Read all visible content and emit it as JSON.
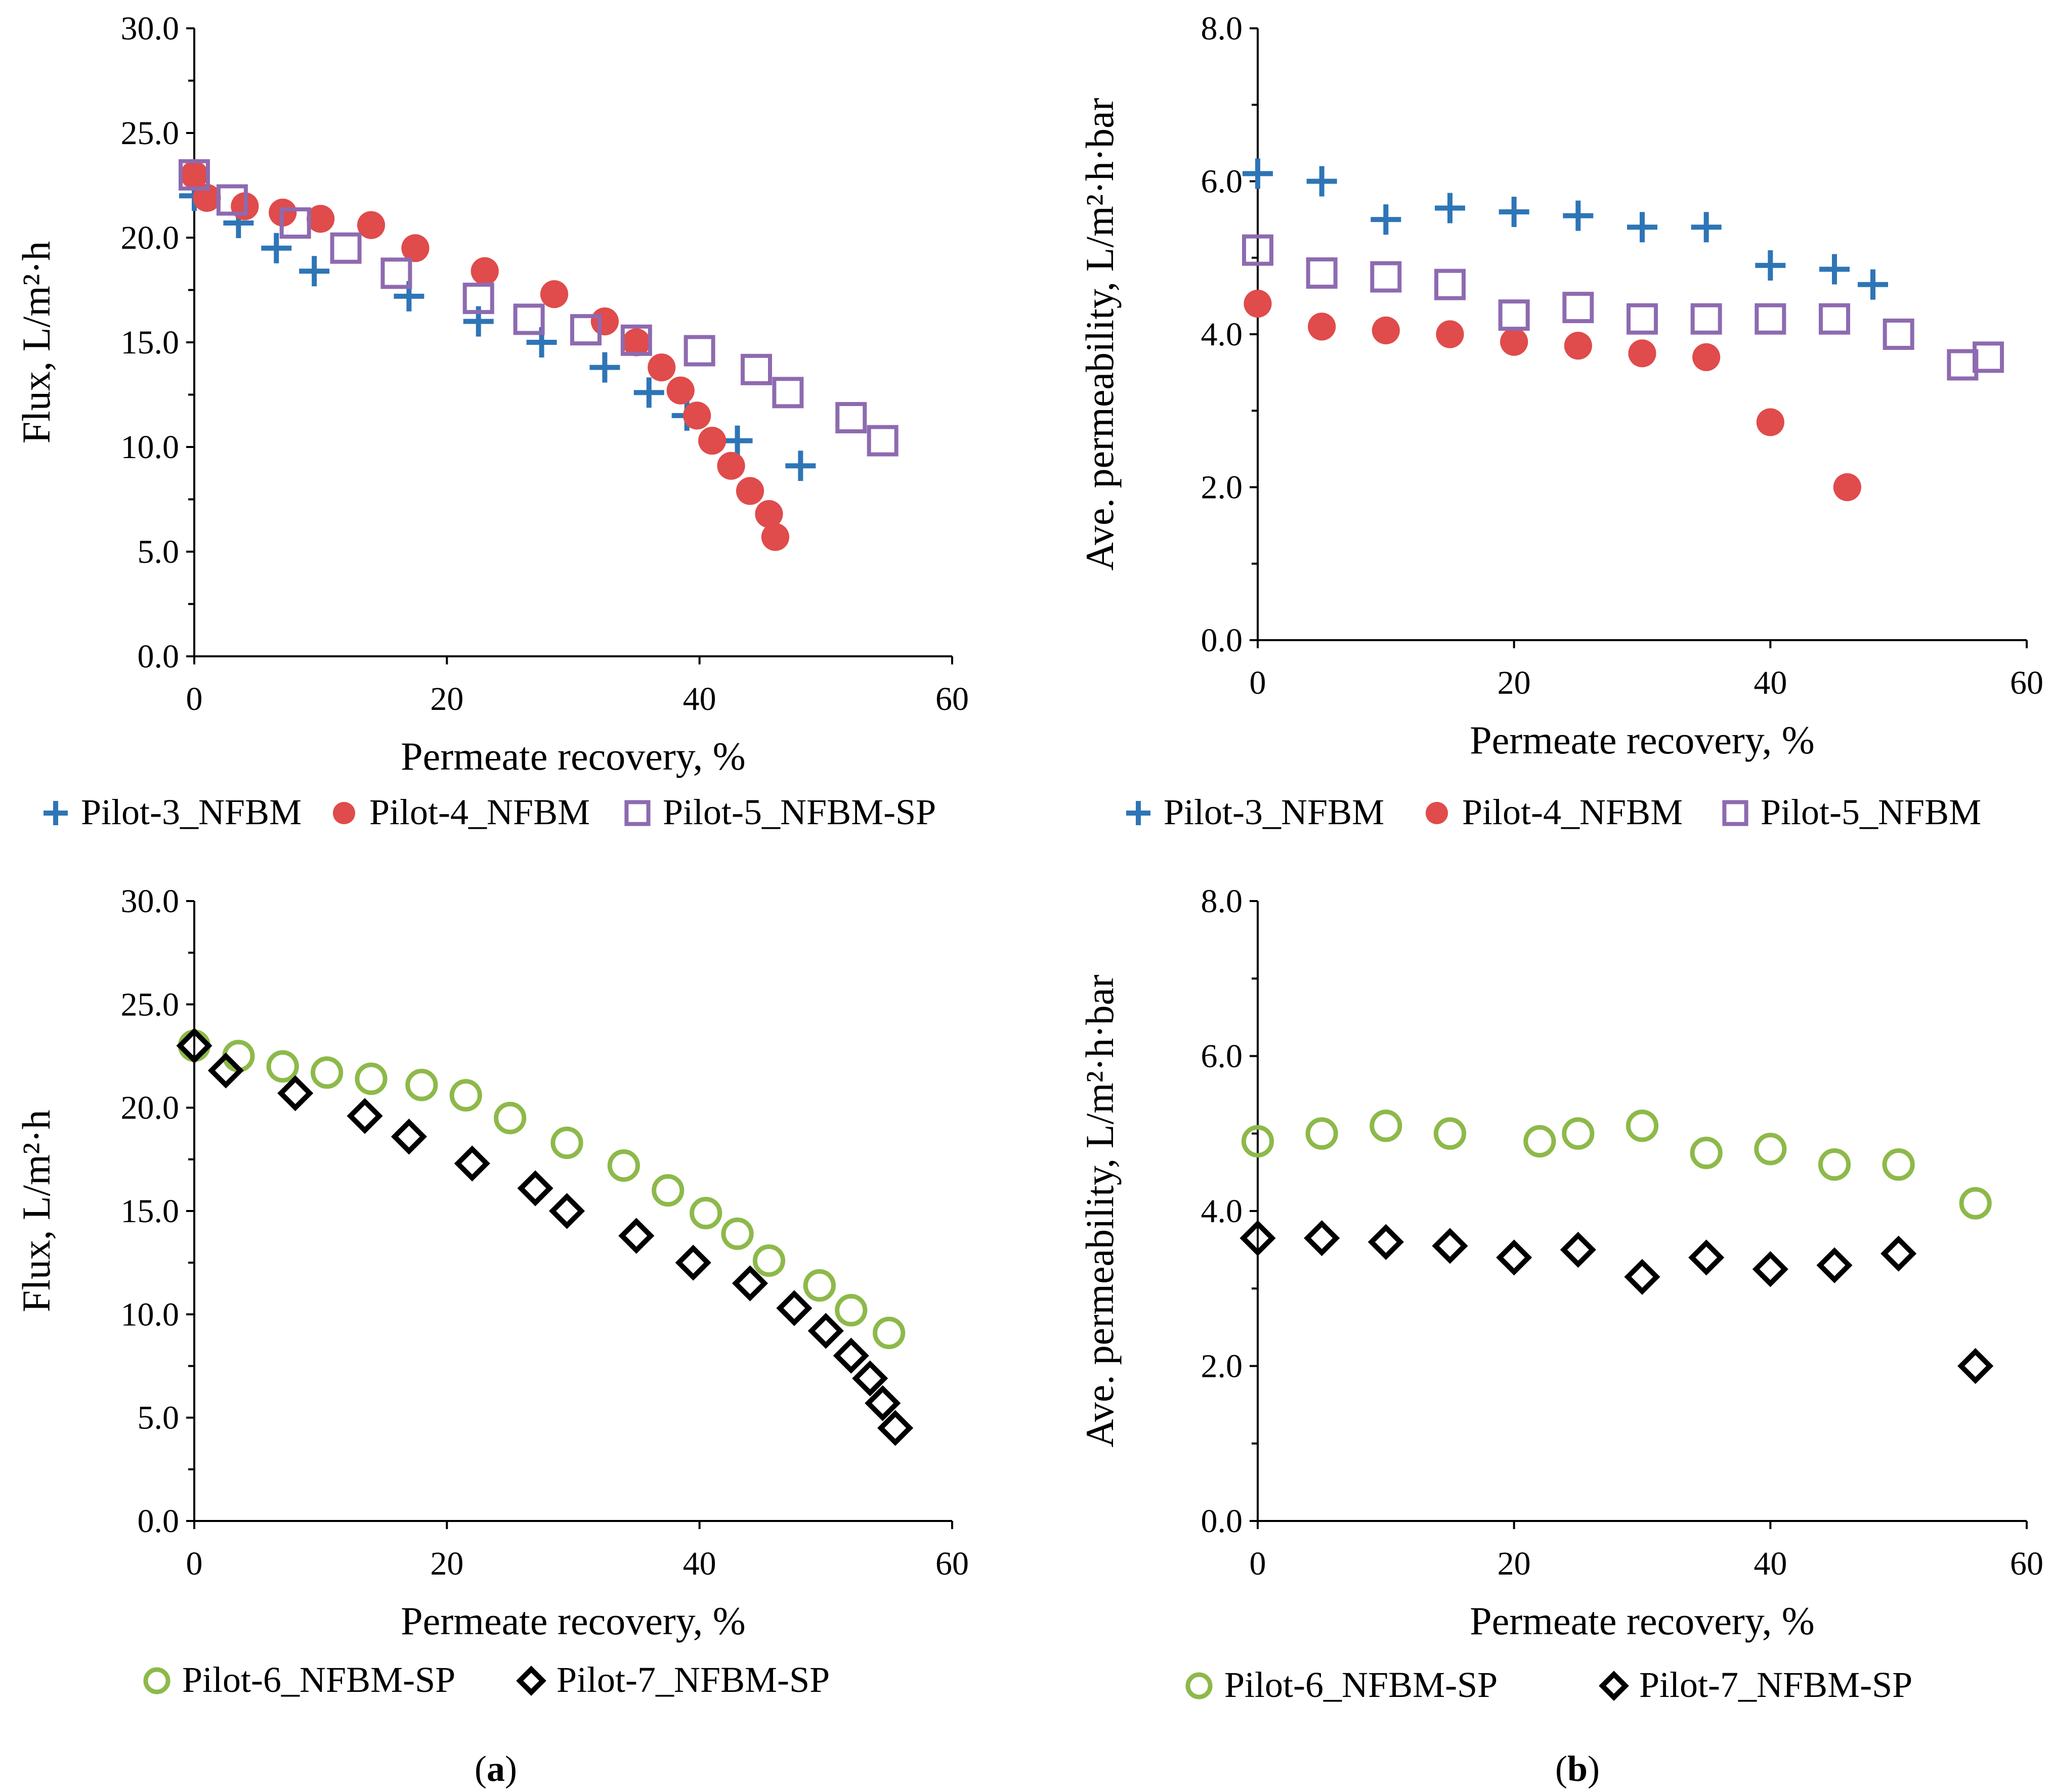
{
  "figure": {
    "caption_a_open": "(",
    "caption_a_letter": "a",
    "caption_a_close": ")",
    "caption_b_open": "(",
    "caption_b_letter": "b",
    "caption_b_close": ")"
  },
  "colors": {
    "blue": "#2E75B6",
    "red": "#E04B4B",
    "purple": "#8E6AB0",
    "green": "#8DB94A",
    "black": "#000000"
  },
  "chart_data": [
    {
      "id": "top-left",
      "type": "scatter",
      "title": "",
      "xlabel": "Permeate recovery, %",
      "ylabel": "Flux, L/m²·h",
      "xlim": [
        0,
        60
      ],
      "ylim": [
        0,
        30
      ],
      "xticks": [
        "0",
        "20",
        "40",
        "60"
      ],
      "yticks": [
        "0.0",
        "5.0",
        "10.0",
        "15.0",
        "20.0",
        "25.0",
        "30.0"
      ],
      "series": [
        {
          "name": "Pilot-3_NFBM",
          "marker": "plus",
          "color": "blue",
          "x": [
            0,
            3.5,
            6.5,
            9.5,
            17,
            22.5,
            27.5,
            32.5,
            36,
            39,
            43,
            48
          ],
          "y": [
            22,
            20.7,
            19.5,
            18.4,
            17.2,
            16.0,
            15.0,
            13.8,
            12.6,
            11.5,
            10.3,
            9.1
          ]
        },
        {
          "name": "Pilot-4_NFBM",
          "marker": "circle-filled",
          "color": "red",
          "x": [
            0,
            1,
            4,
            7,
            10,
            14,
            17.5,
            23,
            28.5,
            32.5,
            35,
            37,
            38.5,
            39.8,
            41,
            42.5,
            44,
            45.5,
            46
          ],
          "y": [
            23,
            21.9,
            21.5,
            21.2,
            20.9,
            20.6,
            19.5,
            18.4,
            17.3,
            16.0,
            15.0,
            13.8,
            12.7,
            11.5,
            10.3,
            9.1,
            7.9,
            6.8,
            5.7
          ]
        },
        {
          "name": "Pilot-5_NFBM-SP",
          "marker": "square-open",
          "color": "purple",
          "x": [
            0,
            3,
            8,
            12,
            16,
            22.5,
            26.5,
            31,
            35,
            40,
            44.5,
            47,
            52,
            54.5
          ],
          "y": [
            23.0,
            21.8,
            20.7,
            19.5,
            18.3,
            17.1,
            16.1,
            15.6,
            15.1,
            14.6,
            13.7,
            12.6,
            11.4,
            10.3
          ]
        }
      ],
      "legend": "bottom"
    },
    {
      "id": "top-right",
      "type": "scatter",
      "title": "",
      "xlabel": "Permeate recovery, %",
      "ylabel": "Ave. permeability, L/m²·h·bar",
      "xlim": [
        0,
        60
      ],
      "ylim": [
        0,
        8
      ],
      "xticks": [
        "0",
        "20",
        "40",
        "60"
      ],
      "yticks": [
        "0.0",
        "2.0",
        "4.0",
        "6.0",
        "8.0"
      ],
      "series": [
        {
          "name": "Pilot-3_NFBM",
          "marker": "plus",
          "color": "blue",
          "x": [
            0,
            5,
            10,
            15,
            20,
            25,
            30,
            35,
            40,
            45,
            48
          ],
          "y": [
            6.1,
            6.0,
            5.5,
            5.65,
            5.6,
            5.55,
            5.4,
            5.4,
            4.9,
            4.85,
            4.65
          ]
        },
        {
          "name": "Pilot-4_NFBM",
          "marker": "circle-filled",
          "color": "red",
          "x": [
            0,
            5,
            10,
            15,
            20,
            25,
            30,
            35,
            40,
            46
          ],
          "y": [
            4.4,
            4.1,
            4.05,
            4.0,
            3.9,
            3.85,
            3.75,
            3.7,
            2.85,
            2.0
          ]
        },
        {
          "name": "Pilot-5_NFBM",
          "marker": "square-open",
          "color": "purple",
          "x": [
            0,
            5,
            10,
            15,
            20,
            25,
            30,
            35,
            40,
            45,
            50,
            55,
            57
          ],
          "y": [
            5.1,
            4.8,
            4.75,
            4.65,
            4.25,
            4.35,
            4.2,
            4.2,
            4.2,
            4.2,
            4.0,
            3.6,
            3.7
          ]
        }
      ],
      "legend": "bottom"
    },
    {
      "id": "bottom-left",
      "type": "scatter",
      "title": "",
      "xlabel": "Permeate recovery, %",
      "ylabel": "Flux, L/m²·h",
      "xlim": [
        0,
        60
      ],
      "ylim": [
        0,
        30
      ],
      "xticks": [
        "0",
        "20",
        "40",
        "60"
      ],
      "yticks": [
        "0.0",
        "5.0",
        "10.0",
        "15.0",
        "20.0",
        "25.0",
        "30.0"
      ],
      "series": [
        {
          "name": "Pilot-6_NFBM-SP",
          "marker": "circle-open",
          "color": "green",
          "x": [
            0,
            3.5,
            7,
            10.5,
            14,
            18,
            21.5,
            25,
            29.5,
            34,
            37.5,
            40.5,
            43,
            45.5,
            49.5,
            52,
            55
          ],
          "y": [
            23.0,
            22.5,
            22.0,
            21.7,
            21.4,
            21.1,
            20.6,
            19.5,
            18.3,
            17.2,
            16.0,
            14.9,
            13.9,
            12.6,
            11.4,
            10.2,
            9.1
          ]
        },
        {
          "name": "Pilot-7_NFBM-SP",
          "marker": "diamond-open",
          "color": "black",
          "x": [
            0,
            2.5,
            8,
            13.5,
            17,
            22,
            27,
            29.5,
            35,
            39.5,
            44,
            47.5,
            50,
            52,
            53.5,
            54.5,
            55.5
          ],
          "y": [
            23.0,
            21.8,
            20.7,
            19.6,
            18.6,
            17.3,
            16.1,
            15.0,
            13.8,
            12.5,
            11.5,
            10.3,
            9.2,
            8.0,
            6.9,
            5.7,
            4.5
          ]
        }
      ],
      "legend": "bottom"
    },
    {
      "id": "bottom-right",
      "type": "scatter",
      "title": "",
      "xlabel": "Permeate recovery, %",
      "ylabel": "Ave. permeability, L/m²·h·bar",
      "xlim": [
        0,
        60
      ],
      "ylim": [
        0,
        8
      ],
      "xticks": [
        "0",
        "20",
        "40",
        "60"
      ],
      "yticks": [
        "0.0",
        "2.0",
        "4.0",
        "6.0",
        "8.0"
      ],
      "series": [
        {
          "name": "Pilot-6_NFBM-SP",
          "marker": "circle-open",
          "color": "green",
          "x": [
            0,
            5,
            10,
            15,
            22,
            25,
            30,
            35,
            40,
            45,
            50,
            56
          ],
          "y": [
            4.9,
            5.0,
            5.1,
            5.0,
            4.9,
            5.0,
            5.1,
            4.75,
            4.8,
            4.6,
            4.6,
            4.1
          ]
        },
        {
          "name": "Pilot-7_NFBM-SP",
          "marker": "diamond-open",
          "color": "black",
          "x": [
            0,
            5,
            10,
            15,
            20,
            25,
            30,
            35,
            40,
            45,
            50,
            56
          ],
          "y": [
            3.65,
            3.65,
            3.6,
            3.55,
            3.4,
            3.5,
            3.15,
            3.4,
            3.25,
            3.3,
            3.45,
            2.0
          ]
        }
      ],
      "legend": "bottom"
    }
  ]
}
